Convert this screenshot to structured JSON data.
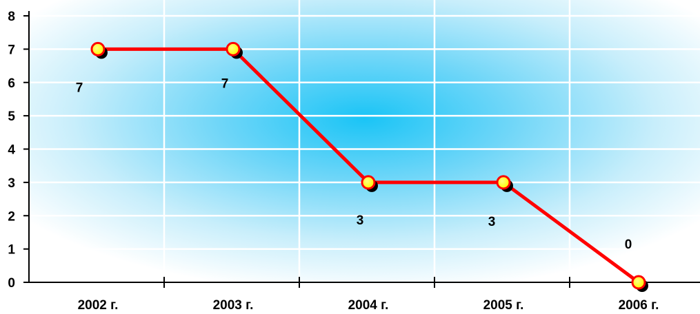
{
  "chart_data": {
    "type": "line",
    "title": "",
    "xlabel": "",
    "ylabel": "",
    "categories": [
      "2002 г.",
      "2003 г.",
      "2004 г.",
      "2005 г.",
      "2006 г."
    ],
    "series": [
      {
        "values": [
          7,
          7,
          3,
          3,
          0
        ],
        "data_labels": [
          "7",
          "7",
          "3",
          "3",
          "0"
        ]
      }
    ],
    "ylim": [
      0,
      8
    ],
    "yticks": [
      "0",
      "1",
      "2",
      "3",
      "4",
      "5",
      "6",
      "7",
      "8"
    ],
    "grid": true,
    "legend": "none",
    "colors": {
      "line": "#ff0000",
      "marker_fill": "#ffff00",
      "marker_shadow": "#000000",
      "background_glow": "#19c3f5",
      "grid": "#ffffff",
      "axis": "#000000"
    }
  }
}
